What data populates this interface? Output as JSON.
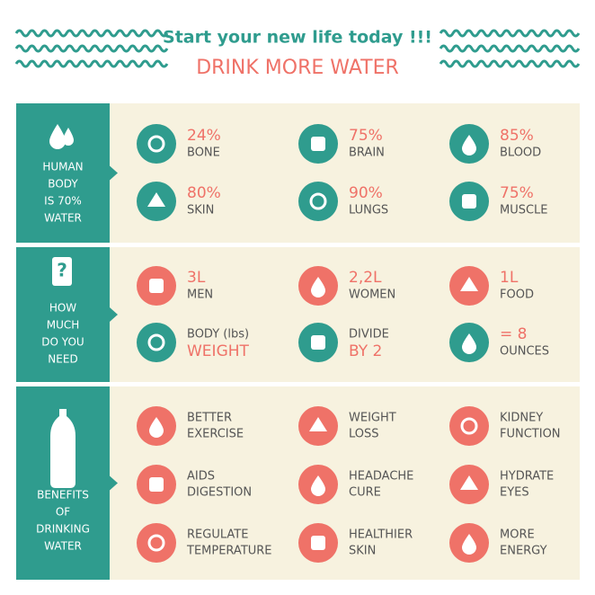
{
  "header": {
    "tagline": "Start your new life today !!!",
    "title": "DRINK MORE WATER"
  },
  "sections": [
    {
      "label": [
        "HUMAN",
        "BODY",
        "IS 70%",
        "WATER"
      ],
      "items": [
        {
          "line1": "24%",
          "line2": "BONE",
          "accent": "line1",
          "icon_color": "teal"
        },
        {
          "line1": "75%",
          "line2": "BRAIN",
          "accent": "line1",
          "icon_color": "teal"
        },
        {
          "line1": "85%",
          "line2": "BLOOD",
          "accent": "line1",
          "icon_color": "teal"
        },
        {
          "line1": "80%",
          "line2": "SKIN",
          "accent": "line1",
          "icon_color": "teal"
        },
        {
          "line1": "90%",
          "line2": "LUNGS",
          "accent": "line1",
          "icon_color": "teal"
        },
        {
          "line1": "75%",
          "line2": "MUSCLE",
          "accent": "line1",
          "icon_color": "teal"
        }
      ]
    },
    {
      "label": [
        "HOW",
        "MUCH",
        "DO YOU",
        "NEED"
      ],
      "items": [
        {
          "line1": "3L",
          "line2": "MEN",
          "accent": "line1",
          "icon_color": "coral"
        },
        {
          "line1": "2,2L",
          "line2": "WOMEN",
          "accent": "line1",
          "icon_color": "coral"
        },
        {
          "line1": "1L",
          "line2": "FOOD",
          "accent": "line1",
          "icon_color": "coral"
        },
        {
          "line1": "BODY (lbs)",
          "line2": "WEIGHT",
          "accent": "line2",
          "icon_color": "teal"
        },
        {
          "line1": "DIVIDE",
          "line2": "BY 2",
          "accent": "line2",
          "icon_color": "teal"
        },
        {
          "line1": "= 8",
          "line2": "OUNCES",
          "accent": "line1",
          "icon_color": "teal"
        }
      ]
    },
    {
      "label": [
        "BENEFITS",
        "OF",
        "DRINKING",
        "WATER"
      ],
      "items": [
        {
          "line1": "BETTER",
          "line2": "EXERCISE",
          "accent": "none",
          "icon_color": "coral"
        },
        {
          "line1": "WEIGHT",
          "line2": "LOSS",
          "accent": "none",
          "icon_color": "coral"
        },
        {
          "line1": "KIDNEY",
          "line2": "FUNCTION",
          "accent": "none",
          "icon_color": "coral"
        },
        {
          "line1": "AIDS",
          "line2": "DIGESTION",
          "accent": "none",
          "icon_color": "coral"
        },
        {
          "line1": "HEADACHE",
          "line2": "CURE",
          "accent": "none",
          "icon_color": "coral"
        },
        {
          "line1": "HYDRATE",
          "line2": "EYES",
          "accent": "none",
          "icon_color": "coral"
        },
        {
          "line1": "REGULATE",
          "line2": "TEMPERATURE",
          "accent": "none",
          "icon_color": "coral"
        },
        {
          "line1": "HEALTHIER",
          "line2": "SKIN",
          "accent": "none",
          "icon_color": "coral"
        },
        {
          "line1": "MORE",
          "line2": "ENERGY",
          "accent": "none",
          "icon_color": "coral"
        }
      ]
    }
  ]
}
